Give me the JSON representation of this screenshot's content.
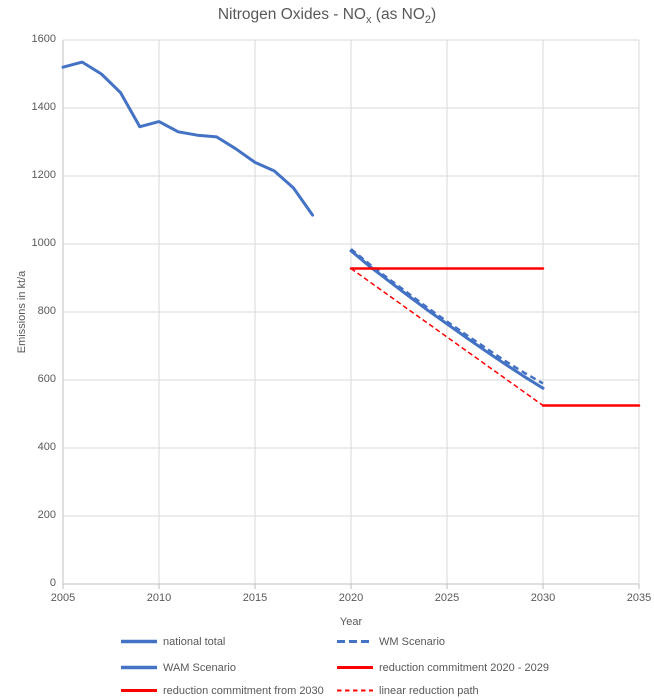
{
  "chart_data": {
    "type": "line",
    "title": "Nitrogen Oxides - NOx (as NO2)",
    "title_parts": [
      "Nitrogen Oxides - NO",
      "x",
      " (as NO",
      "2",
      ")"
    ],
    "xlabel": "Year",
    "ylabel": "Emissions in kt/a",
    "xlim": [
      2005,
      2035
    ],
    "ylim": [
      0,
      1600
    ],
    "xticks": [
      2005,
      2010,
      2015,
      2020,
      2025,
      2030,
      2035
    ],
    "yticks": [
      0,
      200,
      400,
      600,
      800,
      1000,
      1200,
      1400,
      1600
    ],
    "grid": true,
    "legend_position": "bottom",
    "colors": {
      "blue": "#4472C4",
      "red": "#FF0000",
      "gridline": "#D9D9D9",
      "axis_line": "#BFBFBF",
      "text": "#595959"
    },
    "series": [
      {
        "name": "national total",
        "color": "#4472C4",
        "style": "solid",
        "width": 3,
        "x": [
          2005,
          2006,
          2007,
          2008,
          2009,
          2010,
          2011,
          2012,
          2013,
          2014,
          2015,
          2016,
          2017,
          2018
        ],
        "values": [
          1520,
          1535,
          1500,
          1445,
          1345,
          1360,
          1330,
          1320,
          1315,
          1280,
          1240,
          1215,
          1165,
          1085
        ]
      },
      {
        "name": "WAM Scenario",
        "color": "#4472C4",
        "style": "solid",
        "width": 3,
        "x": [
          2020,
          2021,
          2022,
          2023,
          2024,
          2025,
          2026,
          2027,
          2028,
          2029,
          2030
        ],
        "values": [
          980,
          933,
          890,
          847,
          805,
          765,
          725,
          686,
          648,
          611,
          576
        ]
      },
      {
        "name": "WM Scenario",
        "color": "#4472C4",
        "style": "dashed",
        "dash": "6 4",
        "legend_dash": "8 4",
        "width": 2.5,
        "x": [
          2020,
          2021,
          2022,
          2023,
          2024,
          2025,
          2026,
          2027,
          2028,
          2029,
          2030
        ],
        "values": [
          985,
          939,
          896,
          854,
          812,
          772,
          733,
          695,
          657,
          622,
          590
        ]
      },
      {
        "name": "linear reduction path",
        "color": "#FF0000",
        "style": "dashed",
        "dash": "5 3",
        "legend_dash": "4.5 3.5",
        "width": 1.5,
        "x": [
          2020,
          2030
        ],
        "values": [
          928,
          525
        ]
      },
      {
        "name": "reduction commitment 2020 - 2029",
        "color": "#FF0000",
        "style": "solid",
        "width": 2.5,
        "x": [
          2020,
          2030
        ],
        "values": [
          928,
          928
        ]
      },
      {
        "name": "reduction commitment from 2030",
        "color": "#FF0000",
        "style": "solid",
        "width": 2.5,
        "x": [
          2030,
          2035
        ],
        "values": [
          525,
          525
        ]
      }
    ]
  },
  "legend": {
    "items": [
      {
        "label": "national total",
        "series": 0
      },
      {
        "label": "WM Scenario",
        "series": 2
      },
      {
        "label": "WAM Scenario",
        "series": 1
      },
      {
        "label": "reduction commitment 2020 - 2029",
        "series": 4
      },
      {
        "label": "reduction commitment from 2030",
        "series": 5
      },
      {
        "label": "linear reduction path",
        "series": 3
      }
    ]
  }
}
